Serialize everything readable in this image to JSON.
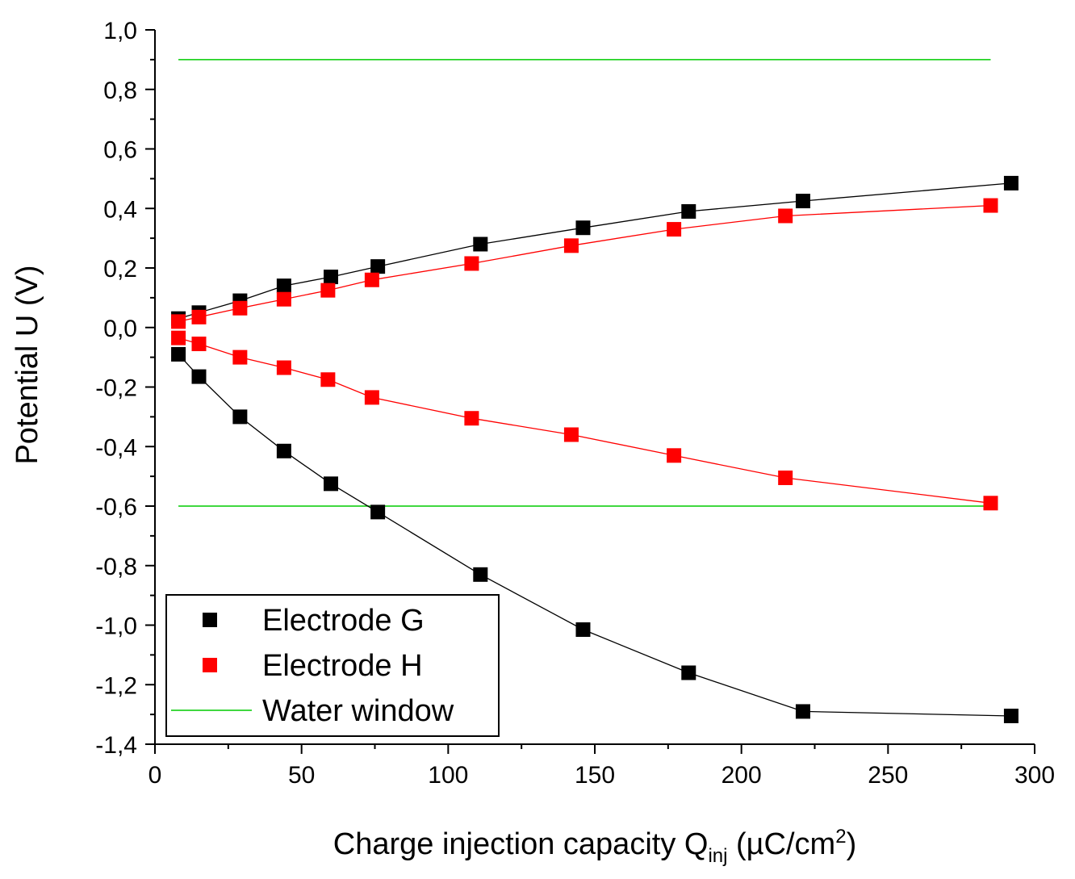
{
  "chart_data": {
    "type": "scatter",
    "xlabel": {
      "main": "Charge injection capacity Q",
      "sub": "inj",
      "unit_open": " (µC/cm",
      "sup": "2",
      "unit_close": ")"
    },
    "ylabel": "Potential U (V)",
    "xlim": [
      0,
      300
    ],
    "ylim": [
      -1.4,
      1.0
    ],
    "x_ticks": [
      {
        "value": 0,
        "label": "0"
      },
      {
        "value": 50,
        "label": "50"
      },
      {
        "value": 100,
        "label": "100"
      },
      {
        "value": 150,
        "label": "150"
      },
      {
        "value": 200,
        "label": "200"
      },
      {
        "value": 250,
        "label": "250"
      },
      {
        "value": 300,
        "label": "300"
      }
    ],
    "y_ticks": [
      {
        "value": 1.0,
        "label": "1,0"
      },
      {
        "value": 0.8,
        "label": "0,8"
      },
      {
        "value": 0.6,
        "label": "0,6"
      },
      {
        "value": 0.4,
        "label": "0,4"
      },
      {
        "value": 0.2,
        "label": "0,2"
      },
      {
        "value": 0.0,
        "label": "0,0"
      },
      {
        "value": -0.2,
        "label": "-0,2"
      },
      {
        "value": -0.4,
        "label": "-0,4"
      },
      {
        "value": -0.6,
        "label": "-0,6"
      },
      {
        "value": -0.8,
        "label": "-0,8"
      },
      {
        "value": -1.0,
        "label": "-1,0"
      },
      {
        "value": -1.2,
        "label": "-1,2"
      },
      {
        "value": -1.4,
        "label": "-1,4"
      }
    ],
    "series": [
      {
        "name": "Electrode G",
        "color": "#000000",
        "marker": "square",
        "curves": [
          {
            "part": "anodic",
            "x": [
              8,
              15,
              29,
              44,
              60,
              76,
              111,
              146,
              182,
              221,
              292
            ],
            "y": [
              0.03,
              0.05,
              0.09,
              0.14,
              0.17,
              0.205,
              0.28,
              0.335,
              0.39,
              0.425,
              0.485
            ]
          },
          {
            "part": "cathodic",
            "x": [
              8,
              15,
              29,
              44,
              60,
              76,
              111,
              146,
              182,
              221,
              292
            ],
            "y": [
              -0.09,
              -0.165,
              -0.3,
              -0.415,
              -0.525,
              -0.62,
              -0.83,
              -1.015,
              -1.16,
              -1.29,
              -1.305
            ]
          }
        ]
      },
      {
        "name": "Electrode H",
        "color": "#ff0000",
        "marker": "square",
        "curves": [
          {
            "part": "anodic",
            "x": [
              8,
              15,
              29,
              44,
              59,
              74,
              108,
              142,
              177,
              215,
              285
            ],
            "y": [
              0.02,
              0.035,
              0.065,
              0.095,
              0.125,
              0.16,
              0.215,
              0.275,
              0.33,
              0.375,
              0.41
            ]
          },
          {
            "part": "cathodic",
            "x": [
              8,
              15,
              29,
              44,
              59,
              74,
              108,
              142,
              177,
              215,
              285
            ],
            "y": [
              -0.035,
              -0.055,
              -0.1,
              -0.135,
              -0.175,
              -0.235,
              -0.305,
              -0.36,
              -0.43,
              -0.505,
              -0.59
            ]
          }
        ]
      }
    ],
    "reference_lines": [
      {
        "name": "Water window",
        "color": "#00cc00",
        "y": 0.9,
        "x_range": [
          8,
          285
        ]
      },
      {
        "name": "Water window",
        "color": "#00cc00",
        "y": -0.6,
        "x_range": [
          8,
          285
        ]
      }
    ],
    "legend": {
      "position": "bottom-left",
      "entries": [
        {
          "label": "Electrode G",
          "color": "#000000",
          "symbol": "square"
        },
        {
          "label": "Electrode H",
          "color": "#ff0000",
          "symbol": "square"
        },
        {
          "label": "Water window",
          "color": "#00cc00",
          "symbol": "line"
        }
      ]
    }
  }
}
